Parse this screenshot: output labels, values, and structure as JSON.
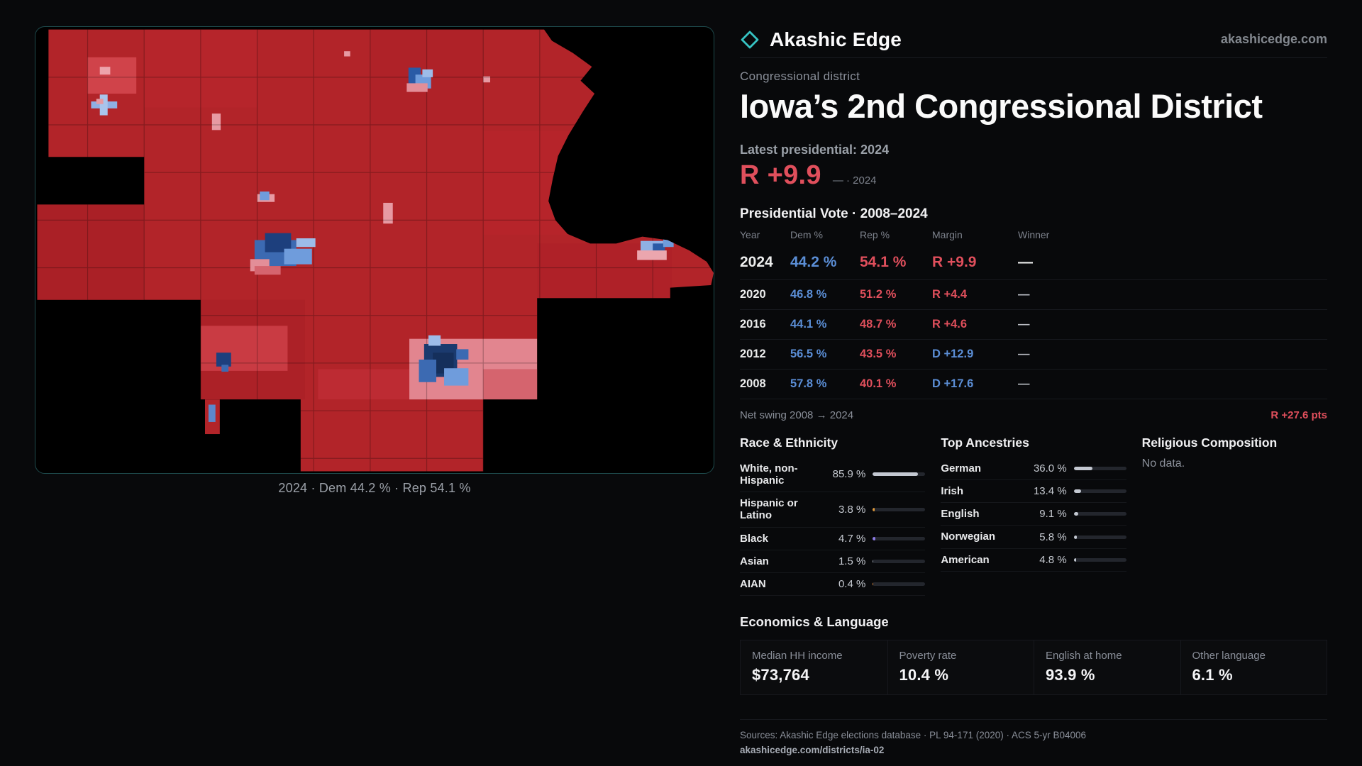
{
  "header": {
    "brand": "Akashic Edge",
    "domain": "akashicedge.com"
  },
  "map": {
    "caption": "2024 · Dem 44.2 % · Rep 54.1 %"
  },
  "district": {
    "kicker": "Congressional district",
    "title": "Iowa’s 2nd Congressional District",
    "latest_label": "Latest presidential: 2024",
    "latest_margin": "R +9.9",
    "latest_note": "— · 2024"
  },
  "vote_table": {
    "title": "Presidential Vote · 2008–2024",
    "columns": {
      "year": "Year",
      "dem": "Dem %",
      "rep": "Rep %",
      "margin": "Margin",
      "winner": "Winner"
    },
    "rows": [
      {
        "year": "2024",
        "dem": "44.2 %",
        "rep": "54.1 %",
        "margin": "R +9.9",
        "winner": "—",
        "lean": "R"
      },
      {
        "year": "2020",
        "dem": "46.8 %",
        "rep": "51.2 %",
        "margin": "R +4.4",
        "winner": "—",
        "lean": "R"
      },
      {
        "year": "2016",
        "dem": "44.1 %",
        "rep": "48.7 %",
        "margin": "R +4.6",
        "winner": "—",
        "lean": "R"
      },
      {
        "year": "2012",
        "dem": "56.5 %",
        "rep": "43.5 %",
        "margin": "D +12.9",
        "winner": "—",
        "lean": "D"
      },
      {
        "year": "2008",
        "dem": "57.8 %",
        "rep": "40.1 %",
        "margin": "D +17.6",
        "winner": "—",
        "lean": "D"
      }
    ],
    "net_swing_label": "Net swing 2008 → 2024",
    "net_swing_value": "R +27.6 pts"
  },
  "race": {
    "title": "Race & Ethnicity",
    "rows": [
      {
        "label": "White, non-Hispanic",
        "value": "85.9 %",
        "pct": 85.9,
        "color": "#c3c8d1"
      },
      {
        "label": "Hispanic or Latino",
        "value": "3.8 %",
        "pct": 3.8,
        "color": "#e09a3c"
      },
      {
        "label": "Black",
        "value": "4.7 %",
        "pct": 4.7,
        "color": "#8d7ce6"
      },
      {
        "label": "Asian",
        "value": "1.5 %",
        "pct": 1.5,
        "color": "#9aa2ad"
      },
      {
        "label": "AIAN",
        "value": "0.4 %",
        "pct": 0.4,
        "color": "#d9853b"
      }
    ]
  },
  "ancestries": {
    "title": "Top Ancestries",
    "rows": [
      {
        "label": "German",
        "value": "36.0 %",
        "pct": 36.0
      },
      {
        "label": "Irish",
        "value": "13.4 %",
        "pct": 13.4
      },
      {
        "label": "English",
        "value": "9.1 %",
        "pct": 9.1
      },
      {
        "label": "Norwegian",
        "value": "5.8 %",
        "pct": 5.8
      },
      {
        "label": "American",
        "value": "4.8 %",
        "pct": 4.8
      }
    ]
  },
  "religion": {
    "title": "Religious Composition",
    "empty": "No data."
  },
  "economics": {
    "title": "Economics & Language",
    "stats": [
      {
        "label": "Median HH income",
        "value": "$73,764"
      },
      {
        "label": "Poverty rate",
        "value": "10.4 %"
      },
      {
        "label": "English at home",
        "value": "93.9 %"
      },
      {
        "label": "Other language",
        "value": "6.1 %"
      }
    ]
  },
  "footer": {
    "sources": "Sources: Akashic Edge elections database · PL 94-171 (2020) · ACS 5-yr B04006",
    "permalink": "akashicedge.com/districts/ia-02"
  },
  "colors": {
    "bg": "#08090b",
    "text": "#f5f5f7",
    "muted": "#8a8f99",
    "accent": "#36c3c3",
    "panel-border": "#1e4b4d",
    "dem-blue": "#5b8ed6",
    "rep-red": "#e04f5c",
    "map-red": "#b22429",
    "bar-fill": "#c3c8d1"
  }
}
